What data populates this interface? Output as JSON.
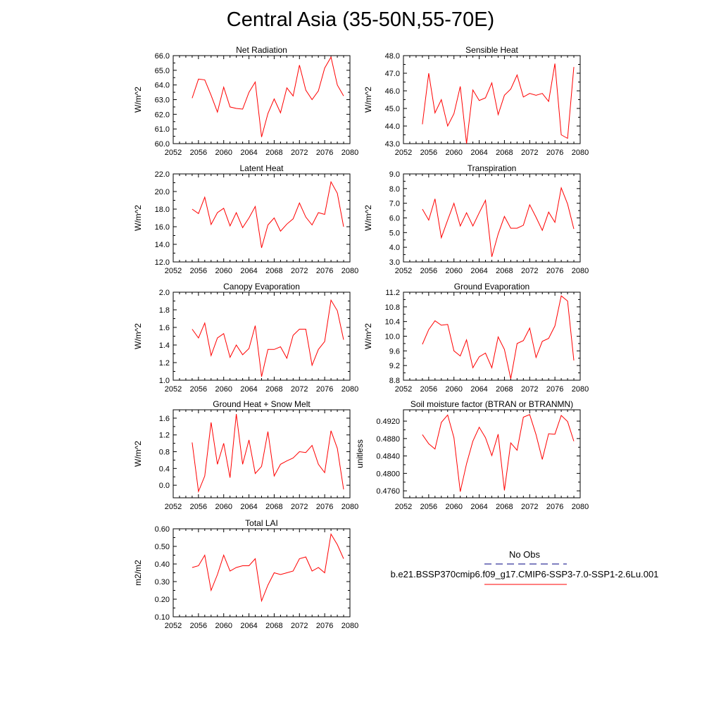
{
  "figure_title": "Central Asia (35-50N,55-70E)",
  "line_color": "#ff0000",
  "obs_line_color": "#000080",
  "legend": {
    "obs_label": "No Obs",
    "model_label": "b.e21.BSSP370cmip6.f09_g17.CMIP6-SSP3-7.0-SSP1-2.6Lu.001"
  },
  "chart_data": [
    {
      "type": "line",
      "title": "Net Radiation",
      "ylabel": "W/m^2",
      "xlim": [
        2052,
        2080
      ],
      "ylim": [
        60,
        66
      ],
      "xticks": [
        2052,
        2056,
        2060,
        2064,
        2068,
        2072,
        2076,
        2080
      ],
      "xtick_labels": [
        "2052",
        "2056",
        "2060",
        "2064",
        "2068",
        "2072",
        "2076",
        "2080"
      ],
      "yticks": [
        60,
        61,
        62,
        63,
        64,
        65,
        66
      ],
      "ytick_labels": [
        "60.0",
        "61.0",
        "62.0",
        "63.0",
        "64.0",
        "65.0",
        "66.0"
      ],
      "series": [
        {
          "x": [
            2055,
            2056,
            2057,
            2058,
            2059,
            2060,
            2061,
            2062,
            2063,
            2064,
            2065,
            2066,
            2067,
            2068,
            2069,
            2070,
            2071,
            2072,
            2073,
            2074,
            2075,
            2076,
            2077,
            2078,
            2079
          ],
          "values": [
            63.1,
            64.4,
            64.35,
            63.3,
            62.15,
            63.85,
            62.5,
            62.4,
            62.35,
            63.5,
            64.2,
            60.45,
            62.05,
            63.05,
            62.1,
            63.8,
            63.25,
            65.35,
            63.65,
            63.0,
            63.6,
            65.15,
            65.9,
            64.0,
            63.25
          ]
        }
      ]
    },
    {
      "type": "line",
      "title": "Sensible Heat",
      "ylabel": "W/m^2",
      "xlim": [
        2052,
        2080
      ],
      "ylim": [
        43,
        48
      ],
      "xticks": [
        2052,
        2056,
        2060,
        2064,
        2068,
        2072,
        2076,
        2080
      ],
      "xtick_labels": [
        "2052",
        "2056",
        "2060",
        "2064",
        "2068",
        "2072",
        "2076",
        "2080"
      ],
      "yticks": [
        43,
        44,
        45,
        46,
        47,
        48
      ],
      "ytick_labels": [
        "43.0",
        "44.0",
        "45.0",
        "46.0",
        "47.0",
        "48.0"
      ],
      "series": [
        {
          "x": [
            2055,
            2056,
            2057,
            2058,
            2059,
            2060,
            2061,
            2062,
            2063,
            2064,
            2065,
            2066,
            2067,
            2068,
            2069,
            2070,
            2071,
            2072,
            2073,
            2074,
            2075,
            2076,
            2077,
            2078,
            2079
          ],
          "values": [
            44.1,
            47.0,
            44.75,
            45.5,
            44.0,
            44.7,
            46.25,
            43.0,
            46.05,
            45.45,
            45.6,
            46.45,
            44.65,
            45.75,
            46.1,
            46.9,
            45.65,
            45.85,
            45.75,
            45.85,
            45.4,
            47.55,
            43.5,
            43.3,
            47.35
          ]
        }
      ]
    },
    {
      "type": "line",
      "title": "Latent Heat",
      "ylabel": "W/m^2",
      "xlim": [
        2052,
        2080
      ],
      "ylim": [
        12,
        22
      ],
      "xticks": [
        2052,
        2056,
        2060,
        2064,
        2068,
        2072,
        2076,
        2080
      ],
      "xtick_labels": [
        "2052",
        "2056",
        "2060",
        "2064",
        "2068",
        "2072",
        "2076",
        "2080"
      ],
      "yticks": [
        12,
        14,
        16,
        18,
        20,
        22
      ],
      "ytick_labels": [
        "12.0",
        "14.0",
        "16.0",
        "18.0",
        "20.0",
        "22.0"
      ],
      "series": [
        {
          "x": [
            2055,
            2056,
            2057,
            2058,
            2059,
            2060,
            2061,
            2062,
            2063,
            2064,
            2065,
            2066,
            2067,
            2068,
            2069,
            2070,
            2071,
            2072,
            2073,
            2074,
            2075,
            2076,
            2077,
            2078,
            2079
          ],
          "values": [
            18.0,
            17.5,
            19.35,
            16.25,
            17.6,
            18.1,
            16.1,
            17.6,
            15.9,
            17.0,
            18.3,
            13.6,
            16.2,
            17.0,
            15.5,
            16.3,
            16.9,
            18.7,
            17.1,
            16.2,
            17.6,
            17.4,
            21.1,
            19.8,
            16.0
          ]
        }
      ]
    },
    {
      "type": "line",
      "title": "Transpiration",
      "ylabel": "W/m^2",
      "xlim": [
        2052,
        2080
      ],
      "ylim": [
        3,
        9
      ],
      "xticks": [
        2052,
        2056,
        2060,
        2064,
        2068,
        2072,
        2076,
        2080
      ],
      "xtick_labels": [
        "2052",
        "2056",
        "2060",
        "2064",
        "2068",
        "2072",
        "2076",
        "2080"
      ],
      "yticks": [
        3,
        4,
        5,
        6,
        7,
        8,
        9
      ],
      "ytick_labels": [
        "3.0",
        "4.0",
        "5.0",
        "6.0",
        "7.0",
        "8.0",
        "9.0"
      ],
      "series": [
        {
          "x": [
            2055,
            2056,
            2057,
            2058,
            2059,
            2060,
            2061,
            2062,
            2063,
            2064,
            2065,
            2066,
            2067,
            2068,
            2069,
            2070,
            2071,
            2072,
            2073,
            2074,
            2075,
            2076,
            2077,
            2078,
            2079
          ],
          "values": [
            6.6,
            5.85,
            7.3,
            4.65,
            5.85,
            7.0,
            5.45,
            6.35,
            5.45,
            6.35,
            7.2,
            3.35,
            4.9,
            6.1,
            5.3,
            5.3,
            5.5,
            6.9,
            6.05,
            5.15,
            6.4,
            5.7,
            8.05,
            6.95,
            5.25
          ]
        }
      ]
    },
    {
      "type": "line",
      "title": "Canopy Evaporation",
      "ylabel": "W/m^2",
      "xlim": [
        2052,
        2080
      ],
      "ylim": [
        1.0,
        2.0
      ],
      "xticks": [
        2052,
        2056,
        2060,
        2064,
        2068,
        2072,
        2076,
        2080
      ],
      "xtick_labels": [
        "2052",
        "2056",
        "2060",
        "2064",
        "2068",
        "2072",
        "2076",
        "2080"
      ],
      "yticks": [
        1.0,
        1.2,
        1.4,
        1.6,
        1.8,
        2.0
      ],
      "ytick_labels": [
        "1.0",
        "1.2",
        "1.4",
        "1.6",
        "1.8",
        "2.0"
      ],
      "series": [
        {
          "x": [
            2055,
            2056,
            2057,
            2058,
            2059,
            2060,
            2061,
            2062,
            2063,
            2064,
            2065,
            2066,
            2067,
            2068,
            2069,
            2070,
            2071,
            2072,
            2073,
            2074,
            2075,
            2076,
            2077,
            2078,
            2079
          ],
          "values": [
            1.58,
            1.48,
            1.65,
            1.28,
            1.48,
            1.53,
            1.26,
            1.4,
            1.29,
            1.36,
            1.62,
            1.04,
            1.35,
            1.35,
            1.38,
            1.25,
            1.51,
            1.58,
            1.58,
            1.17,
            1.35,
            1.44,
            1.91,
            1.79,
            1.46
          ]
        }
      ]
    },
    {
      "type": "line",
      "title": "Ground Evaporation",
      "ylabel": "W/m^2",
      "xlim": [
        2052,
        2080
      ],
      "ylim": [
        8.8,
        11.2
      ],
      "xticks": [
        2052,
        2056,
        2060,
        2064,
        2068,
        2072,
        2076,
        2080
      ],
      "xtick_labels": [
        "2052",
        "2056",
        "2060",
        "2064",
        "2068",
        "2072",
        "2076",
        "2080"
      ],
      "yticks": [
        8.8,
        9.2,
        9.6,
        10.0,
        10.4,
        10.8,
        11.2
      ],
      "ytick_labels": [
        "8.8",
        "9.2",
        "9.6",
        "10.0",
        "10.4",
        "10.8",
        "11.2"
      ],
      "series": [
        {
          "x": [
            2055,
            2056,
            2057,
            2058,
            2059,
            2060,
            2061,
            2062,
            2063,
            2064,
            2065,
            2066,
            2067,
            2068,
            2069,
            2070,
            2071,
            2072,
            2073,
            2074,
            2075,
            2076,
            2077,
            2078,
            2079
          ],
          "values": [
            9.78,
            10.18,
            10.42,
            10.3,
            10.32,
            9.6,
            9.46,
            9.9,
            9.14,
            9.44,
            9.54,
            9.14,
            9.98,
            9.64,
            8.84,
            9.8,
            9.88,
            10.22,
            9.42,
            9.86,
            9.94,
            10.28,
            11.1,
            10.96,
            9.34
          ]
        }
      ]
    },
    {
      "type": "line",
      "title": "Ground Heat + Snow Melt",
      "ylabel": "W/m^2",
      "xlim": [
        2052,
        2080
      ],
      "ylim": [
        -0.3,
        1.8
      ],
      "xticks": [
        2052,
        2056,
        2060,
        2064,
        2068,
        2072,
        2076,
        2080
      ],
      "xtick_labels": [
        "2052",
        "2056",
        "2060",
        "2064",
        "2068",
        "2072",
        "2076",
        "2080"
      ],
      "yticks": [
        0.0,
        0.4,
        0.8,
        1.2,
        1.6
      ],
      "ytick_labels": [
        "0.0",
        "0.4",
        "0.8",
        "1.2",
        "1.6"
      ],
      "series": [
        {
          "x": [
            2055,
            2056,
            2057,
            2058,
            2059,
            2060,
            2061,
            2062,
            2063,
            2064,
            2065,
            2066,
            2067,
            2068,
            2069,
            2070,
            2071,
            2072,
            2073,
            2074,
            2075,
            2076,
            2077,
            2078,
            2079
          ],
          "values": [
            1.02,
            -0.15,
            0.22,
            1.5,
            0.5,
            1.0,
            0.18,
            1.7,
            0.5,
            1.08,
            0.28,
            0.45,
            1.28,
            0.22,
            0.5,
            0.58,
            0.65,
            0.8,
            0.78,
            0.95,
            0.5,
            0.3,
            1.3,
            0.88,
            -0.1
          ]
        }
      ]
    },
    {
      "type": "line",
      "title": "Soil moisture factor (BTRAN or BTRANMN)",
      "ylabel": "unitless",
      "xlim": [
        2052,
        2080
      ],
      "ylim": [
        0.4744,
        0.4946
      ],
      "xticks": [
        2052,
        2056,
        2060,
        2064,
        2068,
        2072,
        2076,
        2080
      ],
      "xtick_labels": [
        "2052",
        "2056",
        "2060",
        "2064",
        "2068",
        "2072",
        "2076",
        "2080"
      ],
      "yticks": [
        0.476,
        0.48,
        0.484,
        0.488,
        0.492
      ],
      "ytick_labels": [
        "0.4760",
        "0.4800",
        "0.4840",
        "0.4880",
        "0.4920"
      ],
      "series": [
        {
          "x": [
            2055,
            2056,
            2057,
            2058,
            2059,
            2060,
            2061,
            2062,
            2063,
            2064,
            2065,
            2066,
            2067,
            2068,
            2069,
            2070,
            2071,
            2072,
            2073,
            2074,
            2075,
            2076,
            2077,
            2078,
            2079
          ],
          "values": [
            0.4889,
            0.4868,
            0.4856,
            0.4917,
            0.4934,
            0.4882,
            0.4758,
            0.4822,
            0.4874,
            0.4906,
            0.4882,
            0.4841,
            0.489,
            0.4761,
            0.487,
            0.4853,
            0.4929,
            0.4935,
            0.4889,
            0.4832,
            0.4891,
            0.489,
            0.4933,
            0.4919,
            0.4874
          ]
        }
      ]
    },
    {
      "type": "line",
      "title": "Total LAI",
      "ylabel": "m2/m2",
      "xlim": [
        2052,
        2080
      ],
      "ylim": [
        0.1,
        0.6
      ],
      "xticks": [
        2052,
        2056,
        2060,
        2064,
        2068,
        2072,
        2076,
        2080
      ],
      "xtick_labels": [
        "2052",
        "2056",
        "2060",
        "2064",
        "2068",
        "2072",
        "2076",
        "2080"
      ],
      "yticks": [
        0.1,
        0.2,
        0.3,
        0.4,
        0.5,
        0.6
      ],
      "ytick_labels": [
        "0.10",
        "0.20",
        "0.30",
        "0.40",
        "0.50",
        "0.60"
      ],
      "series": [
        {
          "x": [
            2055,
            2056,
            2057,
            2058,
            2059,
            2060,
            2061,
            2062,
            2063,
            2064,
            2065,
            2066,
            2067,
            2068,
            2069,
            2070,
            2071,
            2072,
            2073,
            2074,
            2075,
            2076,
            2077,
            2078,
            2079
          ],
          "values": [
            0.38,
            0.39,
            0.45,
            0.25,
            0.34,
            0.45,
            0.36,
            0.38,
            0.39,
            0.39,
            0.43,
            0.19,
            0.28,
            0.35,
            0.34,
            0.35,
            0.36,
            0.43,
            0.44,
            0.36,
            0.38,
            0.35,
            0.57,
            0.51,
            0.43
          ]
        }
      ]
    }
  ]
}
